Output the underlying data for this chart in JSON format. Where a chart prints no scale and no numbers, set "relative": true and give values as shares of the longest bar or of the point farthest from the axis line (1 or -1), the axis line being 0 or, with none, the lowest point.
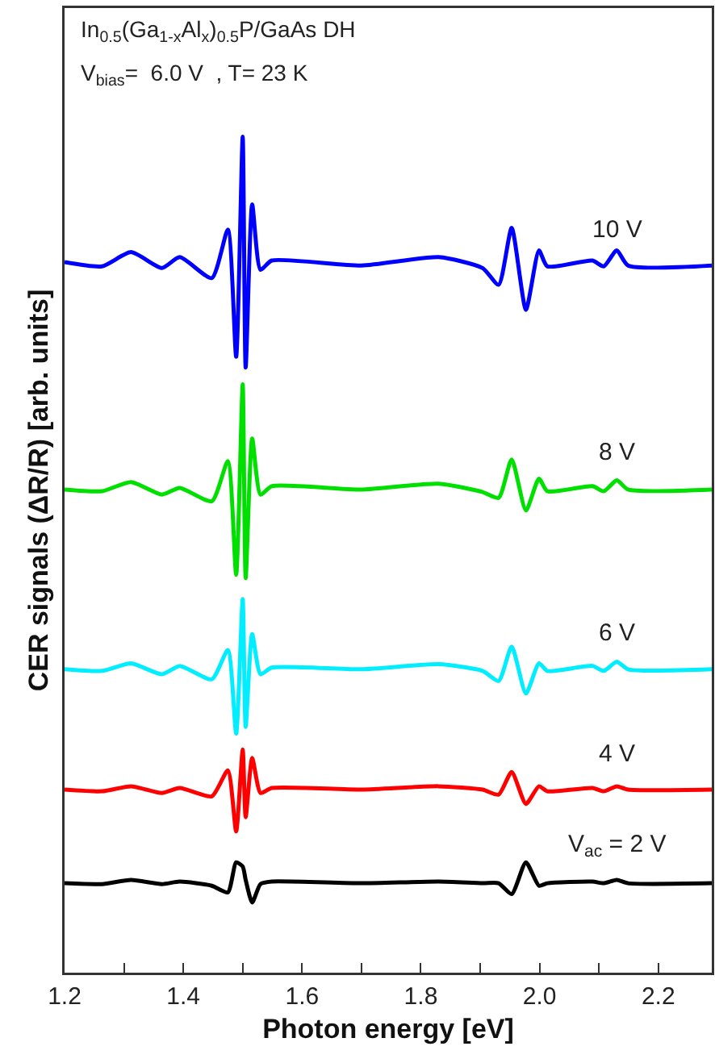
{
  "chart_data": {
    "type": "line",
    "relative": true,
    "xlabel": "Photon energy [eV]",
    "ylabel": "CER signals (ΔR/R) [arb. units]",
    "annotations": [
      "In$_{0.5}$(Ga$_{1-x}$Al$_{x}$)$_{0.5}$P/GaAs DH",
      "V$_{bias}$=  6.0 V  , T= 23 K"
    ],
    "x": [
      1.2,
      1.263,
      1.312,
      1.364,
      1.394,
      1.448,
      1.475,
      1.489,
      1.5,
      1.505,
      1.516,
      1.53,
      1.549,
      1.7,
      1.83,
      1.904,
      1.931,
      1.953,
      1.977,
      1.999,
      2.013,
      2.089,
      2.108,
      2.13,
      2.149,
      2.29
    ],
    "xlim": [
      1.2,
      2.29
    ],
    "xticks": [
      1.2,
      {
        "value": 1.3,
        "label": null
      },
      1.4,
      {
        "value": 1.5,
        "label": null
      },
      1.6,
      {
        "value": 1.7,
        "label": null
      },
      1.8,
      {
        "value": 1.9,
        "label": null
      },
      {
        "value": 2.0,
        "label": "2.0"
      },
      {
        "value": 2.1,
        "label": null
      },
      2.2
    ],
    "legend": false,
    "grid": false,
    "marker": "none",
    "line_style": "solid",
    "series": [
      {
        "name": "10 V",
        "color": "#0000ff",
        "values": [
          0.85,
          0.845,
          0.862,
          0.843,
          0.856,
          0.831,
          0.889,
          0.737,
          1.0,
          0.724,
          0.919,
          0.841,
          0.852,
          0.846,
          0.856,
          0.843,
          0.823,
          0.891,
          0.793,
          0.864,
          0.845,
          0.852,
          0.845,
          0.864,
          0.846,
          0.846
        ]
      },
      {
        "name": "8 V",
        "color": "#00e000",
        "values": [
          0.578,
          0.576,
          0.587,
          0.572,
          0.58,
          0.564,
          0.612,
          0.476,
          0.704,
          0.472,
          0.639,
          0.572,
          0.582,
          0.578,
          0.585,
          0.575,
          0.568,
          0.614,
          0.553,
          0.591,
          0.576,
          0.582,
          0.576,
          0.589,
          0.578,
          0.578
        ]
      },
      {
        "name": "6 V",
        "color": "#00eeff",
        "values": [
          0.363,
          0.361,
          0.37,
          0.357,
          0.367,
          0.351,
          0.386,
          0.286,
          0.447,
          0.294,
          0.405,
          0.357,
          0.365,
          0.363,
          0.369,
          0.361,
          0.349,
          0.39,
          0.334,
          0.37,
          0.361,
          0.367,
          0.361,
          0.372,
          0.363,
          0.363
        ]
      },
      {
        "name": "4 V",
        "color": "#ff0000",
        "values": [
          0.219,
          0.217,
          0.223,
          0.215,
          0.221,
          0.211,
          0.242,
          0.169,
          0.267,
          0.186,
          0.257,
          0.215,
          0.221,
          0.219,
          0.223,
          0.219,
          0.213,
          0.24,
          0.202,
          0.223,
          0.217,
          0.221,
          0.217,
          0.223,
          0.219,
          0.219
        ]
      },
      {
        "name": "V$_{ac}$ = 2 V",
        "color": "#000000",
        "values": [
          0.107,
          0.106,
          0.111,
          0.106,
          0.109,
          0.104,
          0.096,
          0.132,
          0.127,
          0.111,
          0.084,
          0.106,
          0.109,
          0.107,
          0.109,
          0.107,
          0.107,
          0.094,
          0.132,
          0.104,
          0.107,
          0.109,
          0.107,
          0.111,
          0.107,
          0.107
        ]
      }
    ]
  }
}
